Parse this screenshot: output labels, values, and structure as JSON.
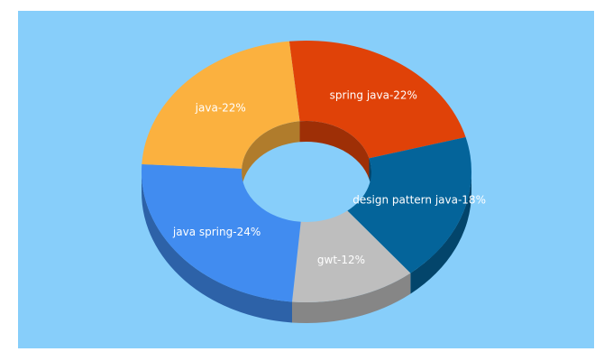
{
  "chart_data": {
    "type": "pie",
    "variant": "3d-donut",
    "title": "",
    "legend": "none",
    "colors": {
      "panel_background": "#87cefa"
    },
    "slices": [
      {
        "name": "spring java",
        "value": 22,
        "label": "spring java-22%",
        "color": "#e04208",
        "side_color": "#9e2f06"
      },
      {
        "name": "design pattern java",
        "value": 18,
        "label": "design pattern java-18%",
        "color": "#04649a",
        "side_color": "#03456b"
      },
      {
        "name": "gwt",
        "value": 12,
        "label": "gwt-12%",
        "color": "#bebebe",
        "side_color": "#868686"
      },
      {
        "name": "java spring",
        "value": 24,
        "label": "java spring-24%",
        "color": "#418cf0",
        "side_color": "#2d62a8"
      },
      {
        "name": "java",
        "value": 22,
        "label": "java-22%",
        "color": "#fbb13f",
        "side_color": "#b07c2c"
      }
    ]
  }
}
